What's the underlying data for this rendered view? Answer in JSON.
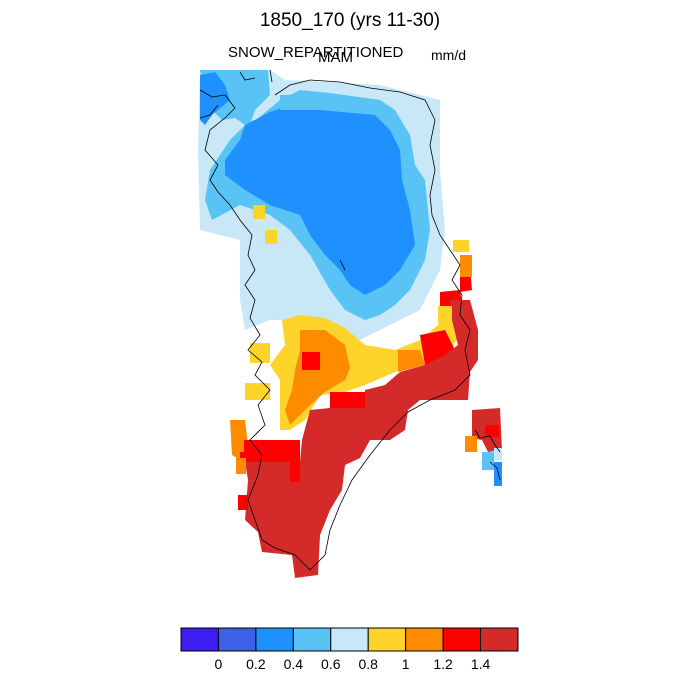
{
  "header": {
    "title": "1850_170 (yrs 11-30)",
    "variable": "SNOW_REPARTITIONED",
    "season": "MAM",
    "units": "mm/d"
  },
  "colorbar": {
    "colors": [
      "#3d1ef2",
      "#3b62e6",
      "#1e90ff",
      "#5ac3f5",
      "#c8e8f8",
      "#ffd42a",
      "#ff8c00",
      "#ff0000",
      "#d42a2a"
    ],
    "labels": [
      "0",
      "0.2",
      "0.4",
      "0.6",
      "0.8",
      "1",
      "1.2",
      "1.4"
    ]
  },
  "map": {
    "region": "Greenland",
    "palette": {
      "blue": "#1e90ff",
      "lightblue": "#5ac3f5",
      "paleblue": "#c8e8f8",
      "yellow": "#ffd42a",
      "orange": "#ff8c00",
      "red": "#ff0000",
      "darkred": "#d42a2a"
    }
  }
}
